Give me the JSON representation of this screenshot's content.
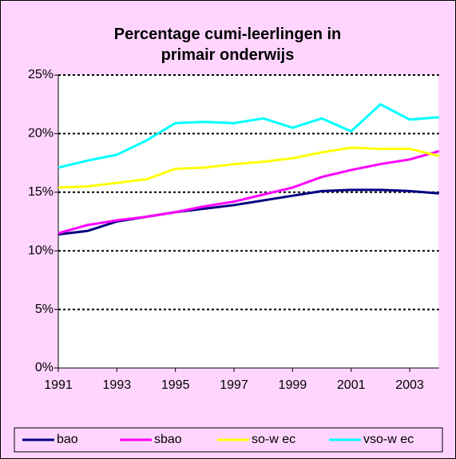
{
  "chart_data": {
    "type": "line",
    "title": "Percentage cumi-leerlingen in primair onderwijs",
    "x": [
      1991,
      1992,
      1993,
      1994,
      1995,
      1996,
      1997,
      1998,
      1999,
      2000,
      2001,
      2002,
      2003,
      2004
    ],
    "xlim": [
      1991,
      2004
    ],
    "xticks": [
      1991,
      1993,
      1995,
      1997,
      1999,
      2001,
      2003
    ],
    "ylim": [
      0,
      25
    ],
    "yticks": [
      {
        "value": 0,
        "label": "0%"
      },
      {
        "value": 5,
        "label": "5%"
      },
      {
        "value": 10,
        "label": "10%"
      },
      {
        "value": 15,
        "label": "15%"
      },
      {
        "value": 20,
        "label": "20%"
      },
      {
        "value": 25,
        "label": "25%"
      }
    ],
    "grid": true,
    "legend": "bottom",
    "series": [
      {
        "name": "bao",
        "color": "#000080",
        "values": [
          11.4,
          11.7,
          12.5,
          12.9,
          13.3,
          13.6,
          13.9,
          14.3,
          14.7,
          15.1,
          15.2,
          15.2,
          15.1,
          14.9
        ]
      },
      {
        "name": "sbao",
        "color": "#ff00ff",
        "values": [
          11.5,
          12.2,
          12.6,
          12.9,
          13.3,
          13.8,
          14.2,
          14.8,
          15.4,
          16.3,
          16.9,
          17.4,
          17.8,
          18.5
        ]
      },
      {
        "name": "so-w ec",
        "color": "#ffff00",
        "values": [
          15.4,
          15.5,
          15.8,
          16.1,
          17.0,
          17.1,
          17.4,
          17.6,
          17.9,
          18.4,
          18.8,
          18.7,
          18.7,
          18.1
        ]
      },
      {
        "name": "vso-w ec",
        "color": "#00ffff",
        "values": [
          17.1,
          17.7,
          18.2,
          19.4,
          20.9,
          21.0,
          20.9,
          21.3,
          20.5,
          21.3,
          20.2,
          22.5,
          21.2,
          21.4
        ]
      }
    ]
  }
}
